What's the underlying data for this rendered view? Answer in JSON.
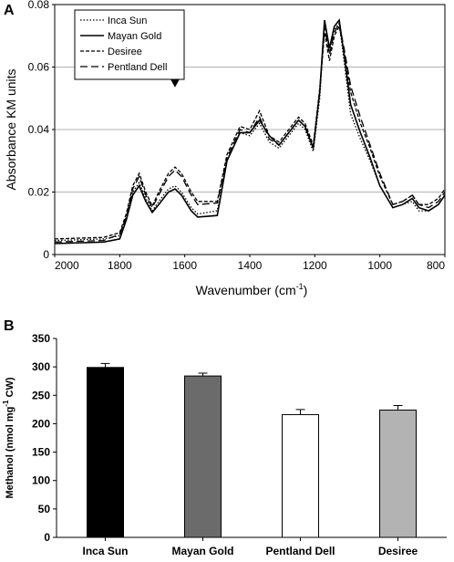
{
  "chart_data": [
    {
      "panel": "A",
      "type": "line",
      "xlabel": "Wavenumber (cm",
      "xlabel_sup": "-1",
      "xlabel_close": ")",
      "ylabel": "Absorbance KM units",
      "xlim": [
        2000,
        800
      ],
      "ylim": [
        0,
        0.08
      ],
      "x_ticks": [
        "2000",
        "1800",
        "1600",
        "1400",
        "1200",
        "1000",
        "800"
      ],
      "y_ticks": [
        "0",
        "0.02",
        "0.04",
        "0.06",
        "0.08"
      ],
      "grid": "horizontal",
      "legend_position": "top-left",
      "annotation": "arrow-down at 1630",
      "series": [
        {
          "name": "Inca Sun",
          "style": "dotted",
          "points": [
            [
              2000,
              0.0045
            ],
            [
              1850,
              0.005
            ],
            [
              1800,
              0.006
            ],
            [
              1780,
              0.012
            ],
            [
              1760,
              0.02
            ],
            [
              1740,
              0.023
            ],
            [
              1720,
              0.018
            ],
            [
              1700,
              0.014
            ],
            [
              1680,
              0.017
            ],
            [
              1650,
              0.021
            ],
            [
              1630,
              0.022
            ],
            [
              1610,
              0.02
            ],
            [
              1580,
              0.015
            ],
            [
              1560,
              0.013
            ],
            [
              1500,
              0.014
            ],
            [
              1470,
              0.03
            ],
            [
              1430,
              0.039
            ],
            [
              1400,
              0.038
            ],
            [
              1370,
              0.042
            ],
            [
              1340,
              0.036
            ],
            [
              1310,
              0.034
            ],
            [
              1280,
              0.038
            ],
            [
              1250,
              0.042
            ],
            [
              1230,
              0.04
            ],
            [
              1205,
              0.033
            ],
            [
              1185,
              0.05
            ],
            [
              1170,
              0.074
            ],
            [
              1155,
              0.065
            ],
            [
              1140,
              0.072
            ],
            [
              1125,
              0.074
            ],
            [
              1110,
              0.062
            ],
            [
              1090,
              0.045
            ],
            [
              1060,
              0.037
            ],
            [
              1030,
              0.03
            ],
            [
              1000,
              0.022
            ],
            [
              960,
              0.015
            ],
            [
              930,
              0.016
            ],
            [
              900,
              0.017
            ],
            [
              880,
              0.014
            ],
            [
              850,
              0.014
            ],
            [
              820,
              0.016
            ],
            [
              800,
              0.019
            ]
          ]
        },
        {
          "name": "Mayan Gold",
          "style": "solid",
          "points": [
            [
              2000,
              0.0035
            ],
            [
              1850,
              0.004
            ],
            [
              1800,
              0.005
            ],
            [
              1780,
              0.011
            ],
            [
              1760,
              0.019
            ],
            [
              1740,
              0.022
            ],
            [
              1720,
              0.017
            ],
            [
              1700,
              0.0135
            ],
            [
              1680,
              0.016
            ],
            [
              1650,
              0.02
            ],
            [
              1630,
              0.021
            ],
            [
              1610,
              0.019
            ],
            [
              1580,
              0.014
            ],
            [
              1560,
              0.012
            ],
            [
              1500,
              0.0125
            ],
            [
              1470,
              0.03
            ],
            [
              1430,
              0.039
            ],
            [
              1400,
              0.039
            ],
            [
              1370,
              0.043
            ],
            [
              1340,
              0.038
            ],
            [
              1310,
              0.035
            ],
            [
              1280,
              0.039
            ],
            [
              1250,
              0.043
            ],
            [
              1230,
              0.041
            ],
            [
              1205,
              0.034
            ],
            [
              1185,
              0.052
            ],
            [
              1170,
              0.075
            ],
            [
              1155,
              0.066
            ],
            [
              1140,
              0.073
            ],
            [
              1125,
              0.075
            ],
            [
              1110,
              0.064
            ],
            [
              1090,
              0.048
            ],
            [
              1060,
              0.039
            ],
            [
              1030,
              0.031
            ],
            [
              1000,
              0.022
            ],
            [
              960,
              0.015
            ],
            [
              930,
              0.016
            ],
            [
              900,
              0.018
            ],
            [
              880,
              0.015
            ],
            [
              850,
              0.014
            ],
            [
              820,
              0.016
            ],
            [
              800,
              0.019
            ]
          ]
        },
        {
          "name": "Desiree",
          "style": "dashed",
          "points": [
            [
              2000,
              0.005
            ],
            [
              1850,
              0.0055
            ],
            [
              1800,
              0.007
            ],
            [
              1780,
              0.013
            ],
            [
              1760,
              0.022
            ],
            [
              1740,
              0.026
            ],
            [
              1720,
              0.02
            ],
            [
              1700,
              0.0155
            ],
            [
              1680,
              0.02
            ],
            [
              1650,
              0.026
            ],
            [
              1630,
              0.028
            ],
            [
              1610,
              0.026
            ],
            [
              1580,
              0.02
            ],
            [
              1560,
              0.017
            ],
            [
              1500,
              0.017
            ],
            [
              1470,
              0.032
            ],
            [
              1430,
              0.041
            ],
            [
              1400,
              0.04
            ],
            [
              1370,
              0.046
            ],
            [
              1340,
              0.038
            ],
            [
              1310,
              0.036
            ],
            [
              1280,
              0.04
            ],
            [
              1250,
              0.044
            ],
            [
              1230,
              0.042
            ],
            [
              1205,
              0.035
            ],
            [
              1185,
              0.053
            ],
            [
              1170,
              0.071
            ],
            [
              1155,
              0.062
            ],
            [
              1140,
              0.07
            ],
            [
              1125,
              0.073
            ],
            [
              1110,
              0.065
            ],
            [
              1090,
              0.052
            ],
            [
              1060,
              0.042
            ],
            [
              1030,
              0.034
            ],
            [
              1000,
              0.025
            ],
            [
              960,
              0.016
            ],
            [
              930,
              0.017
            ],
            [
              900,
              0.019
            ],
            [
              880,
              0.016
            ],
            [
              850,
              0.016
            ],
            [
              820,
              0.018
            ],
            [
              800,
              0.021
            ]
          ]
        },
        {
          "name": "Pentland Dell",
          "style": "longdash",
          "points": [
            [
              2000,
              0.004
            ],
            [
              1850,
              0.0045
            ],
            [
              1800,
              0.0065
            ],
            [
              1780,
              0.012
            ],
            [
              1760,
              0.021
            ],
            [
              1740,
              0.025
            ],
            [
              1720,
              0.019
            ],
            [
              1700,
              0.015
            ],
            [
              1680,
              0.019
            ],
            [
              1650,
              0.025
            ],
            [
              1630,
              0.027
            ],
            [
              1610,
              0.025
            ],
            [
              1580,
              0.019
            ],
            [
              1560,
              0.016
            ],
            [
              1500,
              0.0165
            ],
            [
              1470,
              0.031
            ],
            [
              1430,
              0.04
            ],
            [
              1400,
              0.039
            ],
            [
              1370,
              0.044
            ],
            [
              1340,
              0.037
            ],
            [
              1310,
              0.035
            ],
            [
              1280,
              0.039
            ],
            [
              1250,
              0.043
            ],
            [
              1230,
              0.041
            ],
            [
              1205,
              0.034
            ],
            [
              1185,
              0.052
            ],
            [
              1170,
              0.073
            ],
            [
              1155,
              0.064
            ],
            [
              1140,
              0.071
            ],
            [
              1125,
              0.074
            ],
            [
              1110,
              0.066
            ],
            [
              1090,
              0.054
            ],
            [
              1060,
              0.044
            ],
            [
              1030,
              0.035
            ],
            [
              1000,
              0.026
            ],
            [
              960,
              0.016
            ],
            [
              930,
              0.017
            ],
            [
              900,
              0.019
            ],
            [
              880,
              0.016
            ],
            [
              850,
              0.015
            ],
            [
              820,
              0.017
            ],
            [
              800,
              0.02
            ]
          ]
        }
      ]
    },
    {
      "panel": "B",
      "type": "bar",
      "ylabel": "Methanol (nmol mg",
      "ylabel_sup": "-1",
      "ylabel_close": " CW)",
      "ylim": [
        0,
        350
      ],
      "y_ticks": [
        "0",
        "50",
        "100",
        "150",
        "200",
        "250",
        "300",
        "350"
      ],
      "categories": [
        "Inca Sun",
        "Mayan Gold",
        "Pentland Dell",
        "Desiree"
      ],
      "values": [
        299,
        284,
        216,
        224
      ],
      "errors": [
        7,
        5,
        9,
        8
      ],
      "colors": [
        "#000000",
        "#6b6b6b",
        "#ffffff",
        "#b3b3b3"
      ]
    }
  ]
}
